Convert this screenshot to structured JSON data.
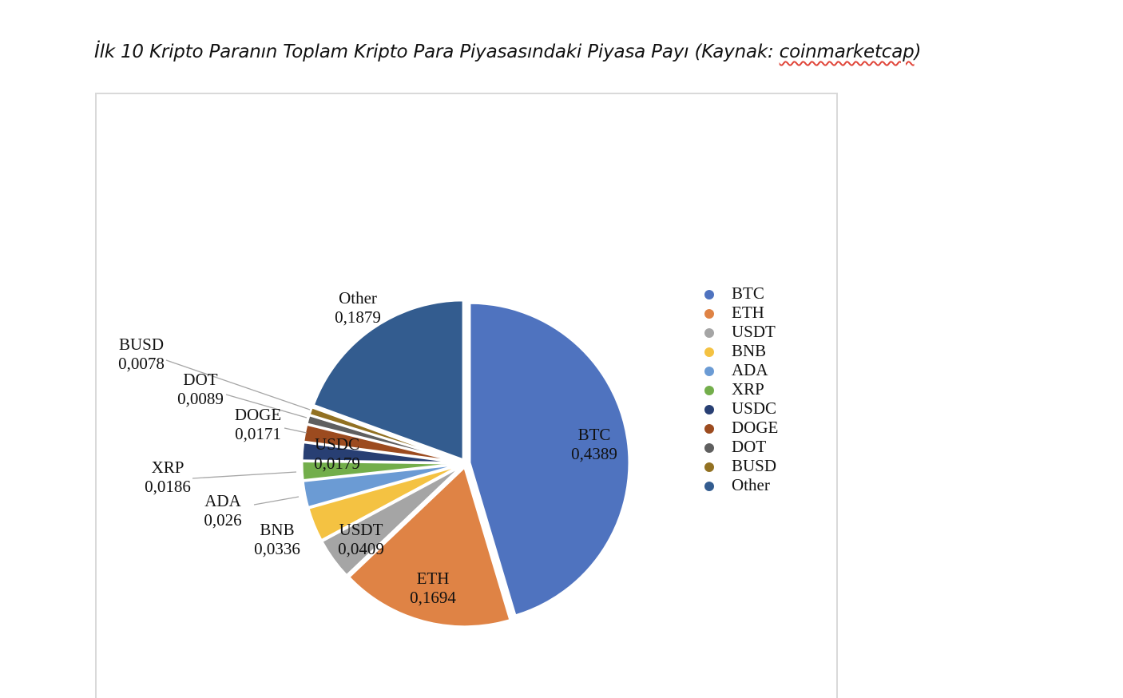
{
  "page": {
    "title_prefix": "İlk 10 Kripto Paranın Toplam Kripto Para Piyasasındaki Piyasa Payı (Kaynak: ",
    "title_link": "coinmarketcap",
    "title_suffix": ")"
  },
  "chart_data": {
    "type": "pie",
    "categories": [
      "BTC",
      "ETH",
      "USDT",
      "BNB",
      "ADA",
      "XRP",
      "USDC",
      "DOGE",
      "DOT",
      "BUSD",
      "Other"
    ],
    "values": [
      0.4389,
      0.1694,
      0.0409,
      0.0336,
      0.026,
      0.0186,
      0.0179,
      0.0171,
      0.0089,
      0.0078,
      0.1879
    ],
    "value_labels": [
      "0,4389",
      "0,1694",
      "0,0409",
      "0,0336",
      "0,026",
      "0,0186",
      "0,0179",
      "0,0171",
      "0,0089",
      "0,0078",
      "0,1879"
    ],
    "colors": [
      "#4f73bf",
      "#df8345",
      "#a5a5a5",
      "#f4c242",
      "#6b9bd4",
      "#73ae4b",
      "#283f73",
      "#9c4b1f",
      "#5f5f5f",
      "#927122",
      "#335c8f"
    ],
    "legend_placement": "right",
    "title": "",
    "exploded": true
  }
}
